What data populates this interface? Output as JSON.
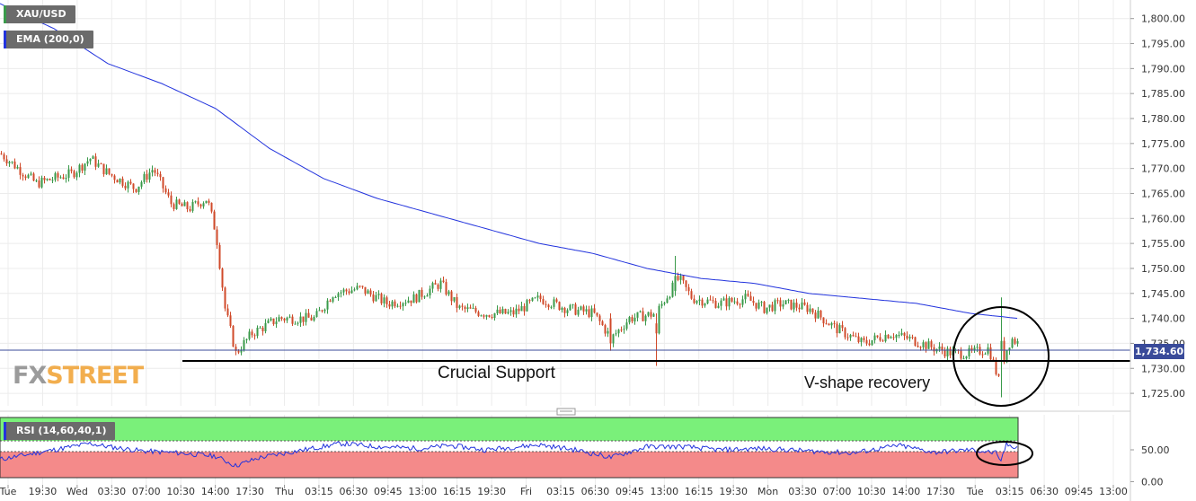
{
  "instrument": "XAU/USD",
  "indicator_main": "EMA (200,0)",
  "indicator_sub": "RSI (14,60,40,1)",
  "current_price_label": "1,734.60",
  "annotations": {
    "support": "Crucial Support",
    "recovery": "V-shape recovery"
  },
  "logo": {
    "part1": "FX",
    "part2": "STREET"
  },
  "colors": {
    "ema": "#2233dd",
    "up": "#3a9a4a",
    "down": "#d04a2a",
    "price_box": "#3a4b9a",
    "rsi_upper_band": "#7af07a",
    "rsi_lower_band": "#f48a8a",
    "rsi_line": "#2233dd"
  },
  "chart_data": {
    "type": "candlestick",
    "title": "XAU/USD",
    "y_ticks": [
      "1,800.00",
      "1,795.00",
      "1,790.00",
      "1,785.00",
      "1,780.00",
      "1,775.00",
      "1,770.00",
      "1,765.00",
      "1,760.00",
      "1,755.00",
      "1,750.00",
      "1,745.00",
      "1,740.00",
      "1,735.00",
      "1,730.00",
      "1,725.00"
    ],
    "y_range": [
      1722.5,
      1803
    ],
    "x_ticks": [
      "Tue",
      "19:30",
      "Wed",
      "03:30",
      "07:00",
      "10:30",
      "14:00",
      "17:30",
      "Thu",
      "03:15",
      "06:30",
      "09:45",
      "13:00",
      "16:15",
      "19:30",
      "Fri",
      "03:15",
      "06:30",
      "09:45",
      "13:00",
      "16:15",
      "19:30",
      "Mon",
      "03:30",
      "07:00",
      "10:30",
      "14:00",
      "17:30",
      "Tue",
      "03:15",
      "06:30",
      "09:45",
      "13:00"
    ],
    "path_keypoints": [
      [
        0,
        1773
      ],
      [
        40,
        1767
      ],
      [
        80,
        1769
      ],
      [
        100,
        1772
      ],
      [
        120,
        1769
      ],
      [
        150,
        1766
      ],
      [
        170,
        1770
      ],
      [
        190,
        1763
      ],
      [
        210,
        1762
      ],
      [
        230,
        1764
      ],
      [
        240,
        1757
      ],
      [
        250,
        1742
      ],
      [
        262,
        1733
      ],
      [
        280,
        1737
      ],
      [
        310,
        1740
      ],
      [
        350,
        1740
      ],
      [
        370,
        1745
      ],
      [
        400,
        1746
      ],
      [
        430,
        1743
      ],
      [
        460,
        1744
      ],
      [
        490,
        1747
      ],
      [
        510,
        1742
      ],
      [
        540,
        1741
      ],
      [
        570,
        1741
      ],
      [
        600,
        1744
      ],
      [
        630,
        1742
      ],
      [
        660,
        1741
      ],
      [
        680,
        1736
      ],
      [
        700,
        1740
      ],
      [
        730,
        1741
      ],
      [
        740,
        1744
      ],
      [
        755,
        1748
      ],
      [
        770,
        1744
      ],
      [
        800,
        1743
      ],
      [
        830,
        1744
      ],
      [
        850,
        1742
      ],
      [
        870,
        1743
      ],
      [
        900,
        1742
      ],
      [
        930,
        1738
      ],
      [
        960,
        1735
      ],
      [
        990,
        1737
      ],
      [
        1010,
        1736
      ],
      [
        1040,
        1734
      ],
      [
        1060,
        1733
      ],
      [
        1080,
        1733
      ],
      [
        1100,
        1734
      ],
      [
        1112,
        1727
      ],
      [
        1118,
        1733
      ],
      [
        1125,
        1736
      ],
      [
        1133,
        1735
      ]
    ],
    "ema_200": [
      [
        0,
        1803
      ],
      [
        60,
        1798
      ],
      [
        120,
        1791
      ],
      [
        180,
        1787
      ],
      [
        240,
        1782
      ],
      [
        300,
        1774
      ],
      [
        360,
        1768
      ],
      [
        420,
        1764
      ],
      [
        480,
        1761
      ],
      [
        540,
        1758
      ],
      [
        600,
        1755
      ],
      [
        660,
        1753
      ],
      [
        720,
        1750
      ],
      [
        780,
        1748
      ],
      [
        840,
        1747
      ],
      [
        900,
        1745
      ],
      [
        960,
        1744
      ],
      [
        1020,
        1743
      ],
      [
        1080,
        1741
      ],
      [
        1133,
        1740
      ]
    ],
    "support_level": 1732.5,
    "last_price": 1734.6,
    "rsi": {
      "y_ticks": [
        "50.00",
        "0.00"
      ],
      "y_range": [
        -5,
        105
      ],
      "upper": 60,
      "lower": 40,
      "keypoints": [
        [
          0,
          35
        ],
        [
          40,
          45
        ],
        [
          80,
          55
        ],
        [
          100,
          60
        ],
        [
          120,
          55
        ],
        [
          160,
          48
        ],
        [
          200,
          45
        ],
        [
          240,
          40
        ],
        [
          262,
          25
        ],
        [
          290,
          38
        ],
        [
          330,
          48
        ],
        [
          380,
          60
        ],
        [
          420,
          55
        ],
        [
          470,
          52
        ],
        [
          500,
          57
        ],
        [
          540,
          50
        ],
        [
          600,
          58
        ],
        [
          640,
          50
        ],
        [
          680,
          38
        ],
        [
          720,
          55
        ],
        [
          760,
          55
        ],
        [
          800,
          50
        ],
        [
          850,
          52
        ],
        [
          900,
          48
        ],
        [
          950,
          45
        ],
        [
          1000,
          57
        ],
        [
          1040,
          46
        ],
        [
          1080,
          50
        ],
        [
          1108,
          45
        ],
        [
          1113,
          30
        ],
        [
          1120,
          58
        ],
        [
          1133,
          54
        ]
      ]
    }
  }
}
